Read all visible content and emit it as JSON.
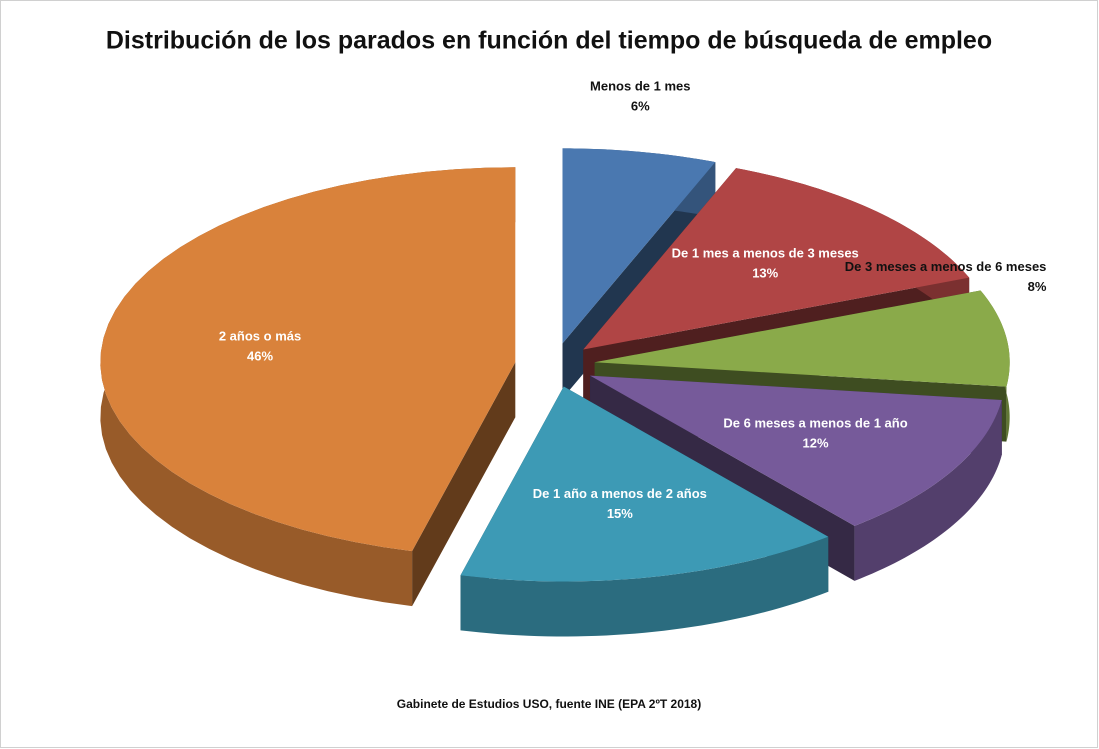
{
  "chart_data": {
    "type": "pie",
    "title": "Distribución de los parados en función del tiempo de búsqueda de empleo",
    "categories": [
      "Menos de 1 mes",
      "De 1 mes a menos de 3 meses",
      "De 3 meses a menos de 6 meses",
      "De 6 meses a menos de 1 año",
      "De 1 año a menos de 2 años",
      "2 años o más"
    ],
    "values": [
      6,
      13,
      8,
      12,
      15,
      46
    ],
    "value_labels": [
      "6%",
      "13%",
      "8%",
      "12%",
      "15%",
      "46%"
    ],
    "colors": [
      "#4a78b0",
      "#b04545",
      "#8aaa4a",
      "#765a9a",
      "#3d9ab5",
      "#d9823b"
    ],
    "source": "Gabinete de Estudios USO, fuente INE (EPA 2ºT 2018)"
  }
}
